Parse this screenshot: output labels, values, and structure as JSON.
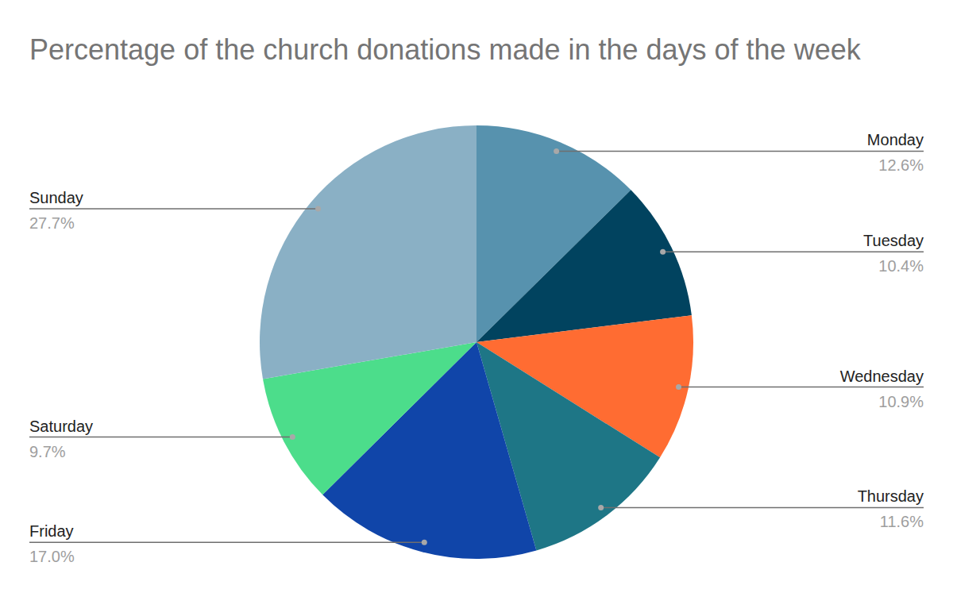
{
  "chart_data": {
    "type": "pie",
    "title": "Percentage of the church donations made in the days of the week",
    "categories": [
      "Monday",
      "Tuesday",
      "Wednesday",
      "Thursday",
      "Friday",
      "Saturday",
      "Sunday"
    ],
    "values": [
      12.6,
      10.4,
      10.9,
      11.6,
      17.0,
      9.7,
      27.7
    ],
    "value_labels": [
      "12.6%",
      "10.4%",
      "10.9%",
      "11.6%",
      "17.0%",
      "9.7%",
      "27.7%"
    ],
    "colors": [
      "#5792ae",
      "#01435f",
      "#ff6c32",
      "#1e7686",
      "#1045a9",
      "#4cdd8b",
      "#8ab0c5"
    ],
    "data_labels": true
  }
}
